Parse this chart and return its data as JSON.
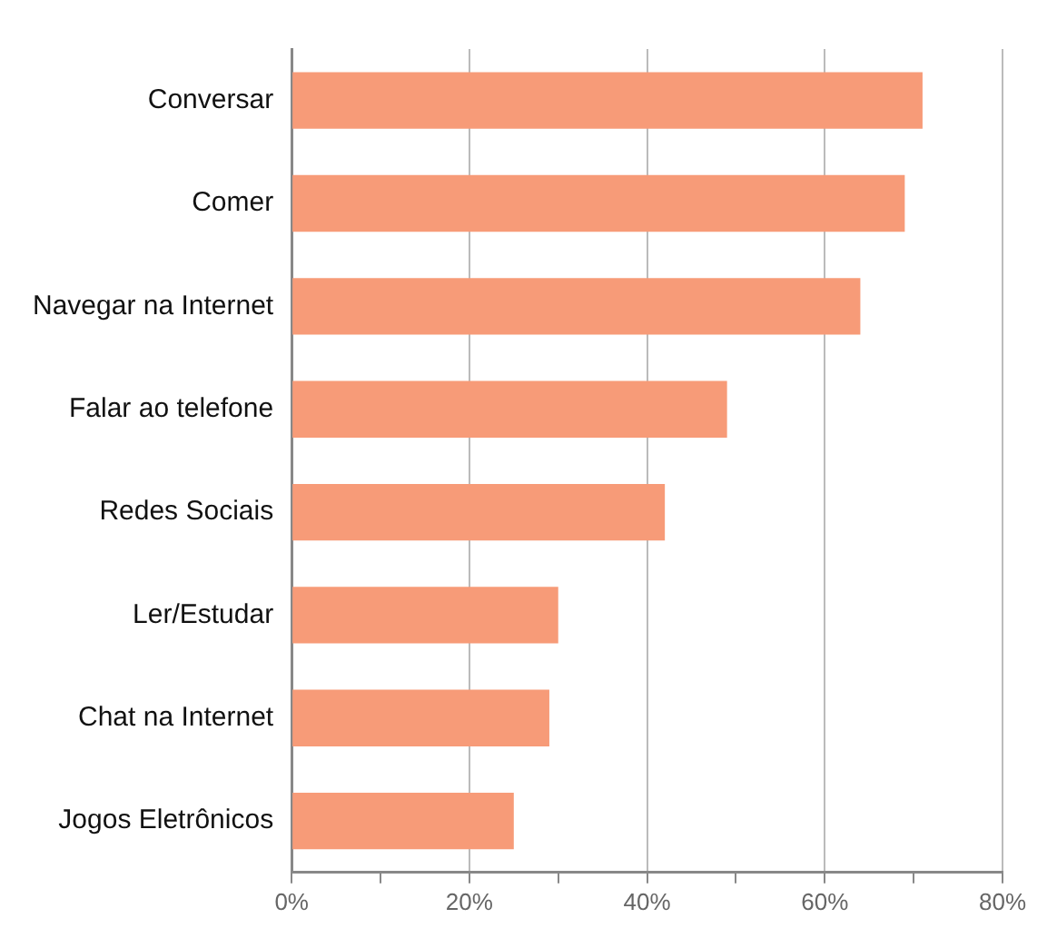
{
  "chart_data": {
    "type": "bar",
    "orientation": "horizontal",
    "categories": [
      "Conversar",
      "Comer",
      "Navegar na Internet",
      "Falar ao telefone",
      "Redes Sociais",
      "Ler/Estudar",
      "Chat na Internet",
      "Jogos Eletrônicos"
    ],
    "values": [
      71,
      69,
      64,
      49,
      42,
      30,
      29,
      25
    ],
    "color": "#f79b78",
    "xlim": [
      0,
      80
    ],
    "xticks": [
      {
        "value": 0,
        "label": "0%"
      },
      {
        "value": 10,
        "label": null
      },
      {
        "value": 20,
        "label": "20%"
      },
      {
        "value": 30,
        "label": null
      },
      {
        "value": 40,
        "label": "40%"
      },
      {
        "value": 50,
        "label": null
      },
      {
        "value": 60,
        "label": "60%"
      },
      {
        "value": 70,
        "label": null
      },
      {
        "value": 80,
        "label": "80%"
      }
    ],
    "grid": "x",
    "legend": false
  }
}
